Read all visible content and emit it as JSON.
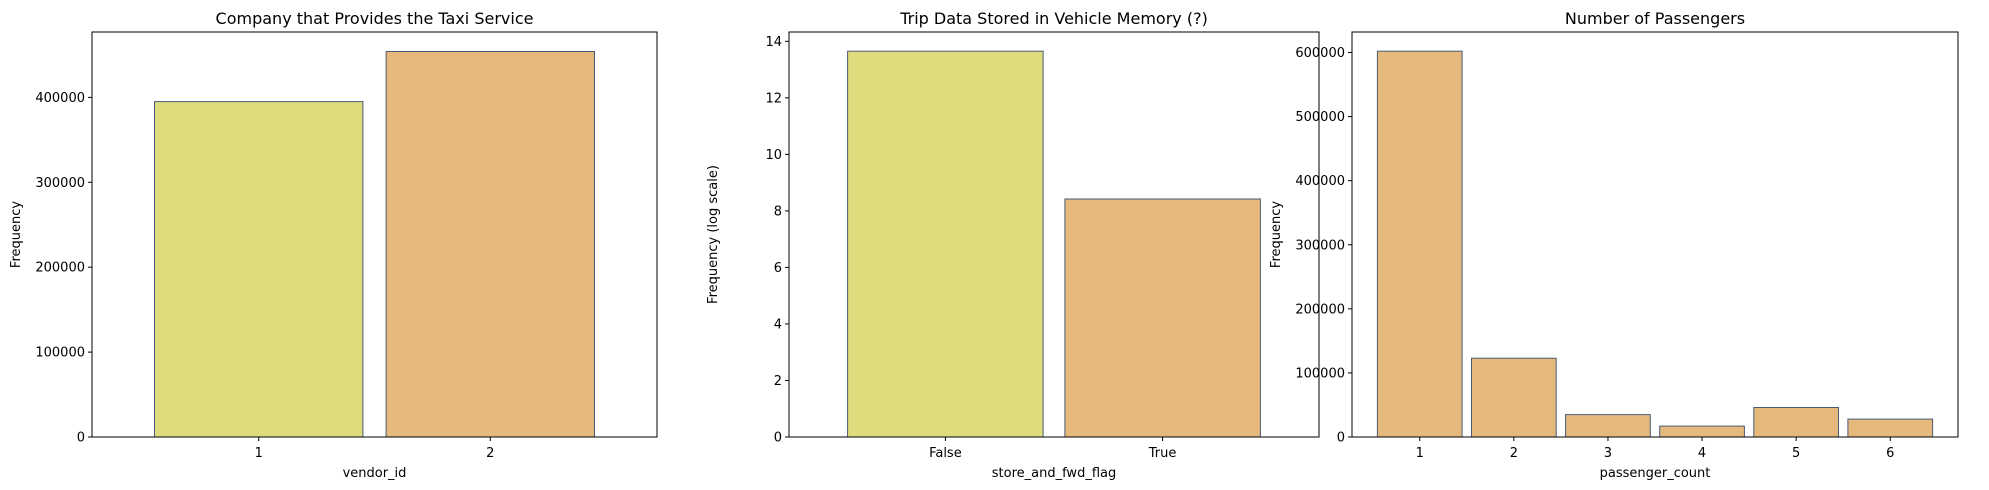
{
  "chart_data": [
    {
      "type": "bar",
      "title": "Company that Provides the Taxi Service",
      "xlabel": "vendor_id",
      "ylabel": "Frequency",
      "categories": [
        "1",
        "2"
      ],
      "values": [
        395000,
        454000
      ],
      "ylim": [
        0,
        477000
      ],
      "yticks": [
        0,
        100000,
        200000,
        300000,
        400000
      ],
      "ytick_labels": [
        "0",
        "100000",
        "200000",
        "300000",
        "400000"
      ],
      "colors": [
        "#dedc7c",
        "#e5b97c"
      ],
      "grid": false
    },
    {
      "type": "bar",
      "title": "Trip Data Stored in Vehicle Memory (?)",
      "xlabel": "store_and_fwd_flag",
      "ylabel": "Frequency (log scale)",
      "categories": [
        "False",
        "True"
      ],
      "values": [
        13.65,
        8.42
      ],
      "ylim": [
        0,
        14.33
      ],
      "yticks": [
        0,
        2,
        4,
        6,
        8,
        10,
        12,
        14
      ],
      "ytick_labels": [
        "0",
        "2",
        "4",
        "6",
        "8",
        "10",
        "12",
        "14"
      ],
      "colors": [
        "#dedc7c",
        "#e5b97c"
      ],
      "grid": false
    },
    {
      "type": "bar",
      "title": "Number of Passengers",
      "xlabel": "passenger_count",
      "ylabel": "Frequency",
      "categories": [
        "1",
        "2",
        "3",
        "4",
        "5",
        "6"
      ],
      "values": [
        602000,
        123000,
        35000,
        17000,
        46000,
        28000
      ],
      "ylim": [
        0,
        632000
      ],
      "yticks": [
        0,
        100000,
        200000,
        300000,
        400000,
        500000,
        600000
      ],
      "ytick_labels": [
        "0",
        "100000",
        "200000",
        "300000",
        "400000",
        "500000",
        "600000"
      ],
      "colors": [
        "#e5b97c"
      ],
      "grid": false
    }
  ]
}
